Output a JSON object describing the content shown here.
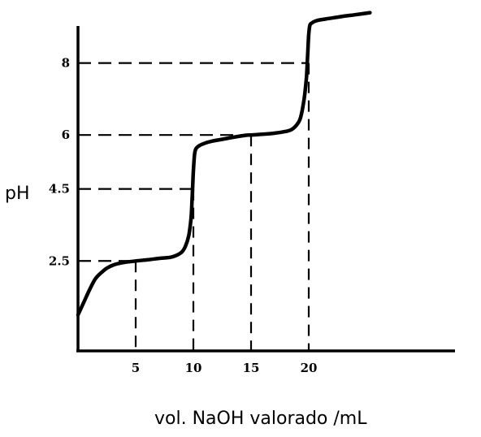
{
  "chart_data": {
    "type": "line",
    "title": "",
    "xlabel": "vol. NaOH valorado /mL",
    "ylabel": "pH",
    "xlim": [
      0,
      25.5
    ],
    "ylim": [
      0,
      9.4
    ],
    "grid": false,
    "x_ticks": [
      "5",
      "10",
      "15",
      "20"
    ],
    "y_ticks": [
      "2.5",
      "4.5",
      "6",
      "8"
    ],
    "reference_lines": [
      {
        "x": 5,
        "y": 2.5
      },
      {
        "x": 10,
        "y": 4.5
      },
      {
        "x": 15,
        "y": 6
      },
      {
        "x": 20,
        "y": 8
      }
    ],
    "series": [
      {
        "color": "#000000",
        "x": [
          0,
          0.5,
          1,
          1.5,
          2,
          2.5,
          3,
          3.5,
          4,
          5,
          6,
          7,
          8,
          8.5,
          9,
          9.3,
          9.6,
          9.8,
          9.9,
          10,
          10.1,
          10.2,
          10.4,
          10.8,
          11.5,
          12.5,
          13.5,
          14.5,
          15,
          16,
          17,
          18,
          18.5,
          19,
          19.3,
          19.6,
          19.8,
          19.9,
          20,
          20.1,
          20.3,
          20.6,
          21,
          22,
          23,
          24,
          25.3
        ],
        "y": [
          1.0,
          1.35,
          1.7,
          2.0,
          2.17,
          2.3,
          2.38,
          2.43,
          2.46,
          2.5,
          2.53,
          2.57,
          2.6,
          2.65,
          2.75,
          2.9,
          3.2,
          3.7,
          4.3,
          5.0,
          5.45,
          5.6,
          5.68,
          5.75,
          5.82,
          5.88,
          5.94,
          5.99,
          6.0,
          6.02,
          6.05,
          6.1,
          6.15,
          6.3,
          6.5,
          7.0,
          7.6,
          8.2,
          8.8,
          9.05,
          9.12,
          9.17,
          9.2,
          9.25,
          9.3,
          9.34,
          9.4
        ]
      }
    ]
  }
}
